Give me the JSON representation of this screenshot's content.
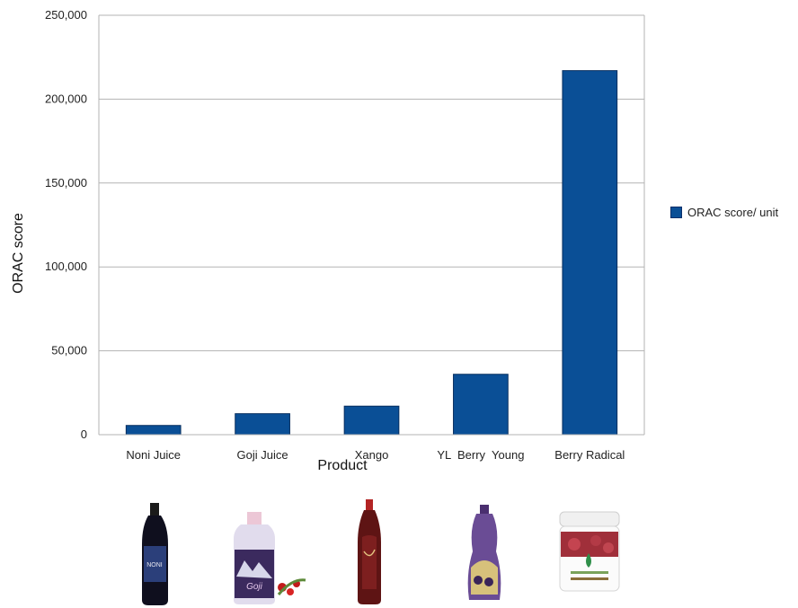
{
  "chart_data": {
    "type": "bar",
    "categories": [
      "Noni Juice",
      "Goji Juice",
      "Xango",
      "YL  Berry  Young",
      "Berry Radical"
    ],
    "series": [
      {
        "name": "ORAC score/ unit",
        "values": [
          5500,
          12500,
          17000,
          36000,
          217000
        ]
      }
    ],
    "xlabel": "Product",
    "ylabel": "ORAC score",
    "ylim": [
      0,
      250000
    ],
    "yticks": [
      0,
      50000,
      100000,
      150000,
      200000,
      250000
    ],
    "ytick_labels": [
      "0",
      "50,000",
      "100,000",
      "150,000",
      "200,000",
      "250,000"
    ],
    "grid": true,
    "legend": "right",
    "bar_color": "#0a4f96",
    "bar_edge_color": "#062d5e"
  },
  "product_images": [
    {
      "icon": "noni-juice-bottle-icon",
      "text": "NONI"
    },
    {
      "icon": "goji-juice-bottle-icon",
      "text": "Goji"
    },
    {
      "icon": "xango-bottle-icon",
      "text": ""
    },
    {
      "icon": "berry-young-pouch-icon",
      "text": ""
    },
    {
      "icon": "berry-radical-jar-icon",
      "text": ""
    }
  ]
}
